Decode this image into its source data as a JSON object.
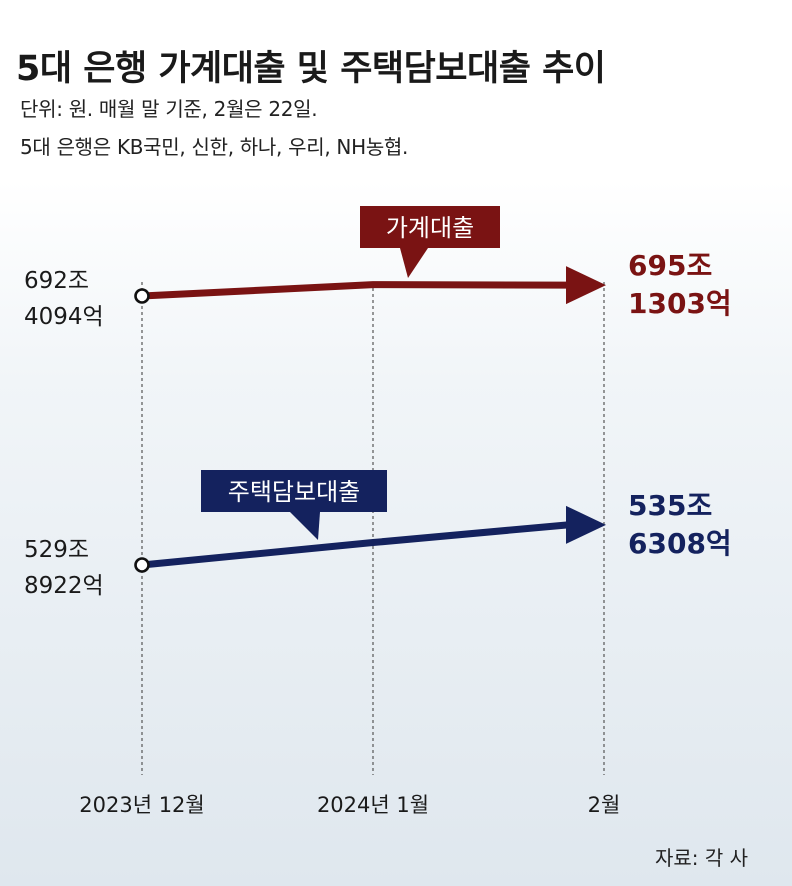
{
  "title": "5대 은행 가계대출 및 주택담보대출 추이",
  "notes": [
    "단위: 원. 매월 말 기준, 2월은 22일.",
    "5대 은행은 KB국민, 신한, 하나, 우리, NH농협."
  ],
  "source": "자료: 각 사",
  "colors": {
    "household": "#7a1313",
    "mortgage": "#14225e",
    "guide": "#555555"
  },
  "chart_data": {
    "type": "line",
    "x": [
      "2023년 12월",
      "2024년 1월",
      "2월"
    ],
    "series": [
      {
        "name": "가계대출",
        "values": [
          6924094,
          6952500,
          6951303
        ],
        "start_label": [
          "692조",
          "4094억"
        ],
        "end_label": [
          "695조",
          "1303억"
        ]
      },
      {
        "name": "주택담보대출",
        "values": [
          5298922,
          5331000,
          5356308
        ],
        "start_label": [
          "529조",
          "8922억"
        ],
        "end_label": [
          "535조",
          "6308억"
        ]
      }
    ],
    "units": "억원",
    "ylabel": "",
    "xlabel": ""
  }
}
